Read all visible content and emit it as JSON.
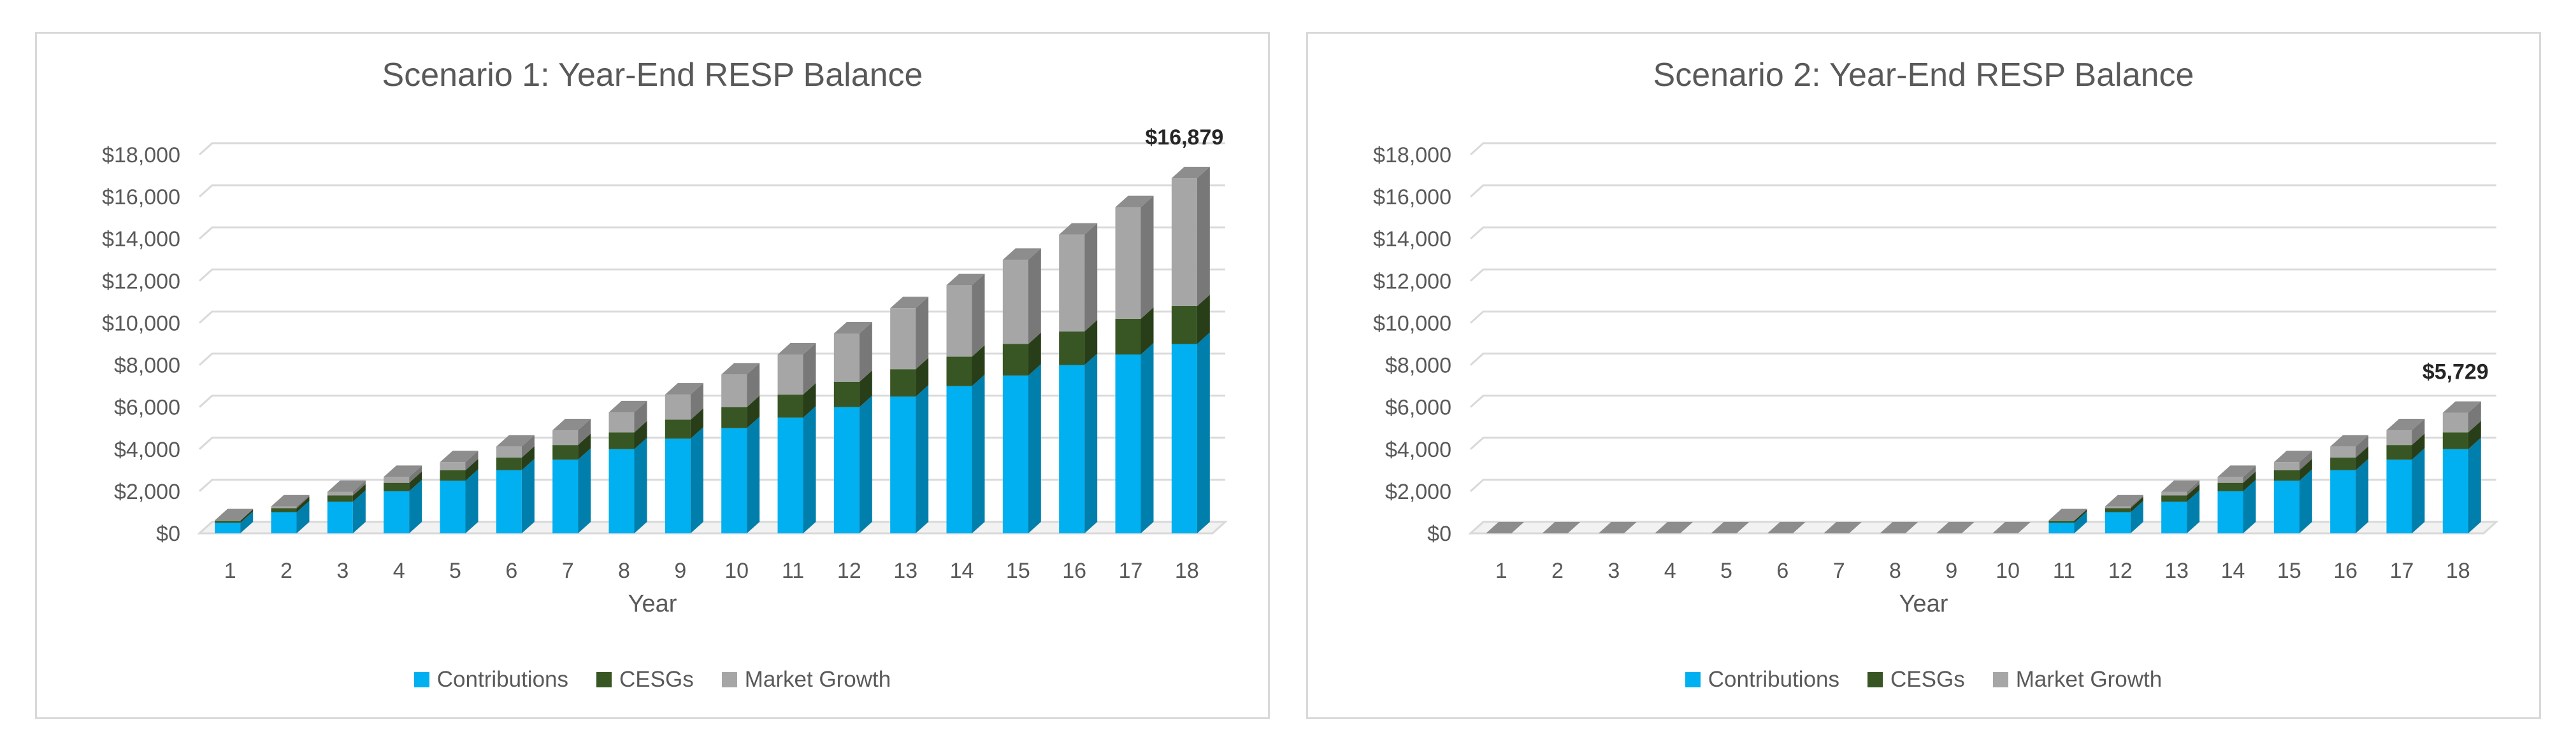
{
  "colors": {
    "contributions": "#00b0f0",
    "cesgs": "#375623",
    "market_growth": "#a6a6a6",
    "grid": "#d9d9d9",
    "text": "#595959",
    "border": "#d9d9d9"
  },
  "chart_data": [
    {
      "type": "bar",
      "stacked": true,
      "title": "Scenario 1: Year-End RESP Balance",
      "xlabel": "Year",
      "ylabel": "",
      "ylim": [
        0,
        18000
      ],
      "yticks": [
        "$0",
        "$2,000",
        "$4,000",
        "$6,000",
        "$8,000",
        "$10,000",
        "$12,000",
        "$14,000",
        "$16,000",
        "$18,000"
      ],
      "categories": [
        "1",
        "2",
        "3",
        "4",
        "5",
        "6",
        "7",
        "8",
        "9",
        "10",
        "11",
        "12",
        "13",
        "14",
        "15",
        "16",
        "17",
        "18"
      ],
      "series": [
        {
          "name": "Contributions",
          "values": [
            500,
            1000,
            1500,
            2000,
            2500,
            3000,
            3500,
            4000,
            4500,
            5000,
            5500,
            6000,
            6500,
            7000,
            7500,
            8000,
            8500,
            9000
          ]
        },
        {
          "name": "CESGs",
          "values": [
            100,
            200,
            300,
            400,
            500,
            600,
            700,
            800,
            900,
            1000,
            1100,
            1200,
            1300,
            1400,
            1500,
            1600,
            1700,
            1800
          ]
        },
        {
          "name": "Market Growth",
          "values": [
            20,
            80,
            170,
            280,
            380,
            520,
            700,
            950,
            1200,
            1550,
            1900,
            2300,
            2900,
            3400,
            4000,
            4600,
            5300,
            6079
          ]
        }
      ],
      "annotation": "$16,879",
      "legend_position": "bottom",
      "grid": true
    },
    {
      "type": "bar",
      "stacked": true,
      "title": "Scenario 2: Year-End RESP Balance",
      "xlabel": "Year",
      "ylabel": "",
      "ylim": [
        0,
        18000
      ],
      "yticks": [
        "$0",
        "$2,000",
        "$4,000",
        "$6,000",
        "$8,000",
        "$10,000",
        "$12,000",
        "$14,000",
        "$16,000",
        "$18,000"
      ],
      "categories": [
        "1",
        "2",
        "3",
        "4",
        "5",
        "6",
        "7",
        "8",
        "9",
        "10",
        "11",
        "12",
        "13",
        "14",
        "15",
        "16",
        "17",
        "18"
      ],
      "series": [
        {
          "name": "Contributions",
          "values": [
            0,
            0,
            0,
            0,
            0,
            0,
            0,
            0,
            0,
            0,
            500,
            1000,
            1500,
            2000,
            2500,
            3000,
            3500,
            4000
          ]
        },
        {
          "name": "CESGs",
          "values": [
            0,
            0,
            0,
            0,
            0,
            0,
            0,
            0,
            0,
            0,
            100,
            200,
            300,
            400,
            500,
            600,
            700,
            800
          ]
        },
        {
          "name": "Market Growth",
          "values": [
            0,
            0,
            0,
            0,
            0,
            0,
            0,
            0,
            0,
            0,
            20,
            80,
            170,
            280,
            380,
            520,
            700,
            929
          ]
        }
      ],
      "annotation": "$5,729",
      "legend_position": "bottom",
      "grid": true
    }
  ]
}
